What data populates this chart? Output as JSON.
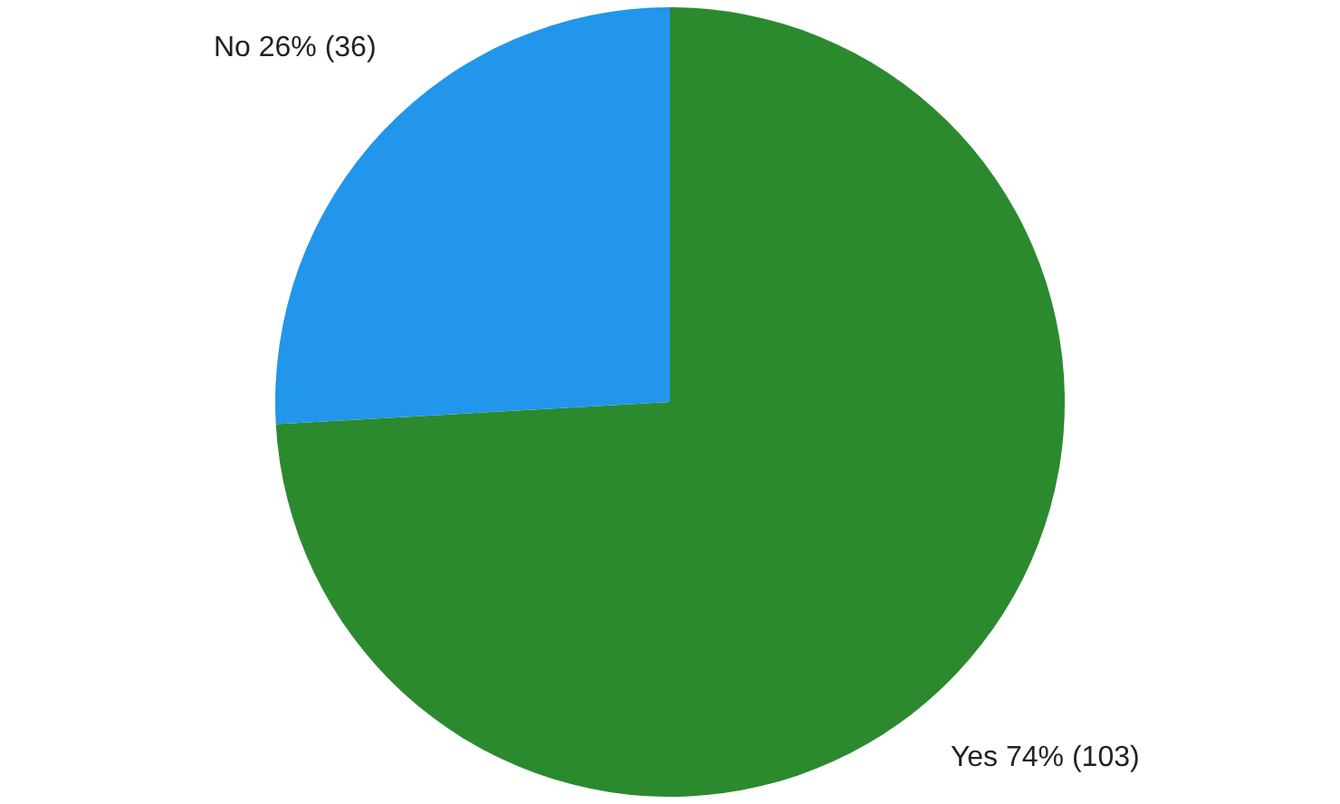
{
  "chart_data": {
    "type": "pie",
    "categories": [
      "Yes",
      "No"
    ],
    "values": [
      103,
      36
    ],
    "value_labels": [
      "74% (103)",
      "26% (36)"
    ],
    "colors": [
      "#2b8a2e",
      "#2196ea"
    ],
    "legend": false
  }
}
